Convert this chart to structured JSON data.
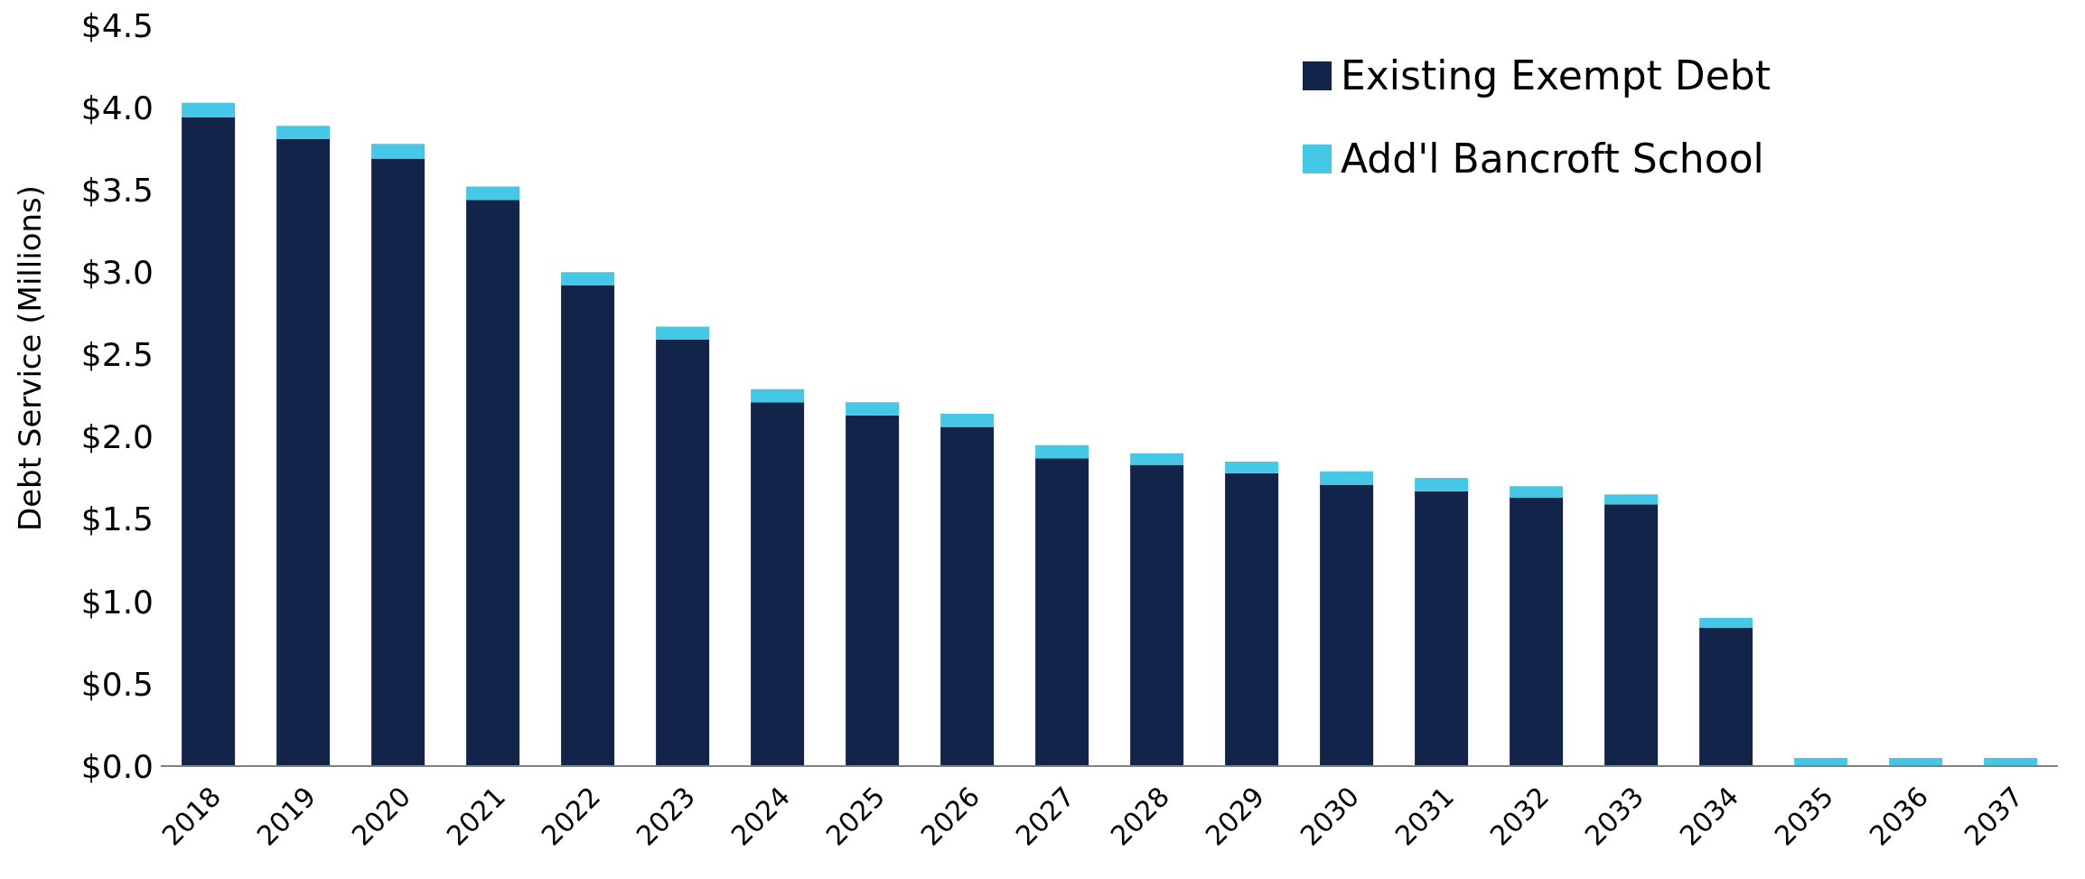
{
  "chart_data": {
    "type": "bar",
    "stacked": true,
    "ylabel": "Debt Service (Millions)",
    "categories": [
      "2018",
      "2019",
      "2020",
      "2021",
      "2022",
      "2023",
      "2024",
      "2025",
      "2026",
      "2027",
      "2028",
      "2029",
      "2030",
      "2031",
      "2032",
      "2033",
      "2034",
      "2035",
      "2036",
      "2037"
    ],
    "series": [
      {
        "name": "Existing Exempt Debt",
        "color": "#13244a",
        "values": [
          3.94,
          3.81,
          3.69,
          3.44,
          2.92,
          2.59,
          2.21,
          2.13,
          2.06,
          1.87,
          1.83,
          1.78,
          1.71,
          1.67,
          1.63,
          1.59,
          0.84,
          0,
          0,
          0
        ]
      },
      {
        "name": "Add'l Bancroft School",
        "color": "#45c8e6",
        "values": [
          0.09,
          0.08,
          0.09,
          0.08,
          0.08,
          0.08,
          0.08,
          0.08,
          0.08,
          0.08,
          0.07,
          0.07,
          0.08,
          0.08,
          0.07,
          0.06,
          0.06,
          0.05,
          0.05,
          0.05
        ]
      }
    ],
    "ylim": [
      0,
      4.5
    ],
    "yticks": [
      {
        "value": 0,
        "label": "$0.0"
      },
      {
        "value": 0.5,
        "label": "$0.5"
      },
      {
        "value": 1,
        "label": "$1.0"
      },
      {
        "value": 1.5,
        "label": "$1.5"
      },
      {
        "value": 2,
        "label": "$2.0"
      },
      {
        "value": 2.5,
        "label": "$2.5"
      },
      {
        "value": 3,
        "label": "$3.0"
      },
      {
        "value": 3.5,
        "label": "$3.5"
      },
      {
        "value": 4,
        "label": "$4.0"
      },
      {
        "value": 4.5,
        "label": "$4.5"
      }
    ],
    "grid": false,
    "legend": "top right"
  }
}
